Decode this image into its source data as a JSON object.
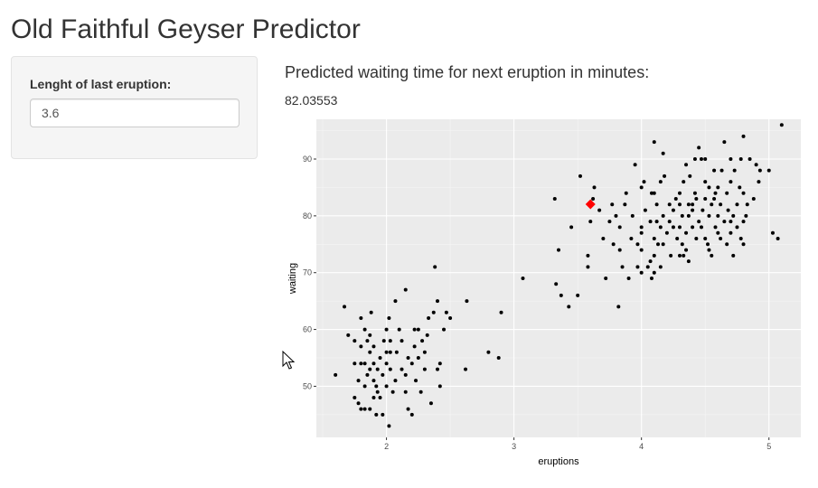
{
  "page": {
    "title": "Old Faithful Geyser Predictor"
  },
  "sidebar": {
    "input_label": "Lenght of last eruption:",
    "input_value": "3.6"
  },
  "main": {
    "prediction_heading": "Predicted waiting time for next eruption in minutes:",
    "prediction_value": "82.03553"
  },
  "chart_data": {
    "type": "scatter",
    "xlabel": "eruptions",
    "ylabel": "waiting",
    "xlim": [
      1.45,
      5.25
    ],
    "ylim": [
      41,
      97
    ],
    "xticks": [
      2,
      3,
      4,
      5
    ],
    "yticks": [
      50,
      60,
      70,
      80,
      90
    ],
    "grid": true,
    "background": "#ebebeb",
    "point_color": "#000000",
    "series": [
      {
        "points": [
          [
            1.6,
            52
          ],
          [
            1.67,
            64
          ],
          [
            1.7,
            59
          ],
          [
            1.75,
            48
          ],
          [
            1.75,
            54
          ],
          [
            1.75,
            58
          ],
          [
            1.78,
            47
          ],
          [
            1.78,
            51
          ],
          [
            1.8,
            46
          ],
          [
            1.8,
            54
          ],
          [
            1.8,
            57
          ],
          [
            1.8,
            62
          ],
          [
            1.83,
            46
          ],
          [
            1.83,
            50
          ],
          [
            1.83,
            54
          ],
          [
            1.83,
            60
          ],
          [
            1.85,
            52
          ],
          [
            1.85,
            58
          ],
          [
            1.87,
            46
          ],
          [
            1.87,
            53
          ],
          [
            1.87,
            56
          ],
          [
            1.87,
            59
          ],
          [
            1.88,
            63
          ],
          [
            1.9,
            48
          ],
          [
            1.9,
            51
          ],
          [
            1.9,
            54
          ],
          [
            1.9,
            57
          ],
          [
            1.92,
            45
          ],
          [
            1.92,
            50
          ],
          [
            1.93,
            49
          ],
          [
            1.93,
            53
          ],
          [
            1.95,
            48
          ],
          [
            1.95,
            55
          ],
          [
            1.97,
            45
          ],
          [
            1.97,
            52
          ],
          [
            1.98,
            58
          ],
          [
            2.0,
            54
          ],
          [
            2.0,
            50
          ],
          [
            2.0,
            56
          ],
          [
            2.0,
            60
          ],
          [
            2.02,
            43
          ],
          [
            2.02,
            62
          ],
          [
            2.03,
            53
          ],
          [
            2.03,
            56
          ],
          [
            2.03,
            58
          ],
          [
            2.05,
            49
          ],
          [
            2.07,
            51
          ],
          [
            2.07,
            65
          ],
          [
            2.08,
            56
          ],
          [
            2.1,
            60
          ],
          [
            2.12,
            53
          ],
          [
            2.12,
            58
          ],
          [
            2.15,
            49
          ],
          [
            2.15,
            52
          ],
          [
            2.15,
            67
          ],
          [
            2.17,
            46
          ],
          [
            2.17,
            55
          ],
          [
            2.2,
            45
          ],
          [
            2.2,
            54
          ],
          [
            2.22,
            57
          ],
          [
            2.22,
            60
          ],
          [
            2.23,
            51
          ],
          [
            2.25,
            55
          ],
          [
            2.25,
            60
          ],
          [
            2.27,
            49
          ],
          [
            2.28,
            58
          ],
          [
            2.3,
            53
          ],
          [
            2.3,
            56
          ],
          [
            2.32,
            59
          ],
          [
            2.33,
            62
          ],
          [
            2.35,
            47
          ],
          [
            2.37,
            63
          ],
          [
            2.38,
            71
          ],
          [
            2.4,
            53
          ],
          [
            2.4,
            65
          ],
          [
            2.42,
            50
          ],
          [
            2.42,
            54
          ],
          [
            2.45,
            60
          ],
          [
            2.47,
            63
          ],
          [
            2.5,
            62
          ],
          [
            2.62,
            53
          ],
          [
            2.63,
            65
          ],
          [
            2.8,
            56
          ],
          [
            2.88,
            55
          ],
          [
            2.9,
            63
          ],
          [
            3.07,
            69
          ],
          [
            3.32,
            83
          ],
          [
            3.33,
            68
          ],
          [
            3.35,
            74
          ],
          [
            3.37,
            66
          ],
          [
            3.43,
            64
          ],
          [
            3.45,
            78
          ],
          [
            3.5,
            66
          ],
          [
            3.52,
            87
          ],
          [
            3.58,
            71
          ],
          [
            3.58,
            73
          ],
          [
            3.6,
            79
          ],
          [
            3.62,
            83
          ],
          [
            3.63,
            85
          ],
          [
            3.67,
            81
          ],
          [
            3.7,
            76
          ],
          [
            3.72,
            69
          ],
          [
            3.75,
            79
          ],
          [
            3.77,
            82
          ],
          [
            3.78,
            75
          ],
          [
            3.8,
            80
          ],
          [
            3.82,
            64
          ],
          [
            3.83,
            74
          ],
          [
            3.83,
            78
          ],
          [
            3.85,
            71
          ],
          [
            3.87,
            82
          ],
          [
            3.88,
            84
          ],
          [
            3.9,
            69
          ],
          [
            3.92,
            76
          ],
          [
            3.93,
            80
          ],
          [
            3.95,
            89
          ],
          [
            3.97,
            71
          ],
          [
            3.97,
            75
          ],
          [
            4.0,
            70
          ],
          [
            4.0,
            74
          ],
          [
            4.0,
            77
          ],
          [
            4.0,
            78
          ],
          [
            4.0,
            85
          ],
          [
            4.02,
            86
          ],
          [
            4.03,
            81
          ],
          [
            4.05,
            71
          ],
          [
            4.07,
            72
          ],
          [
            4.07,
            79
          ],
          [
            4.08,
            69
          ],
          [
            4.08,
            84
          ],
          [
            4.1,
            70
          ],
          [
            4.1,
            73
          ],
          [
            4.1,
            76
          ],
          [
            4.1,
            84
          ],
          [
            4.1,
            93
          ],
          [
            4.12,
            79
          ],
          [
            4.12,
            82
          ],
          [
            4.13,
            75
          ],
          [
            4.15,
            71
          ],
          [
            4.15,
            78
          ],
          [
            4.15,
            86
          ],
          [
            4.17,
            75
          ],
          [
            4.17,
            80
          ],
          [
            4.17,
            91
          ],
          [
            4.18,
            87
          ],
          [
            4.2,
            77
          ],
          [
            4.22,
            79
          ],
          [
            4.22,
            82
          ],
          [
            4.23,
            73
          ],
          [
            4.25,
            78
          ],
          [
            4.25,
            81
          ],
          [
            4.27,
            83
          ],
          [
            4.28,
            76
          ],
          [
            4.3,
            73
          ],
          [
            4.3,
            78
          ],
          [
            4.3,
            82
          ],
          [
            4.3,
            84
          ],
          [
            4.32,
            75
          ],
          [
            4.32,
            80
          ],
          [
            4.33,
            73
          ],
          [
            4.33,
            86
          ],
          [
            4.35,
            74
          ],
          [
            4.35,
            77
          ],
          [
            4.35,
            89
          ],
          [
            4.37,
            72
          ],
          [
            4.37,
            80
          ],
          [
            4.37,
            82
          ],
          [
            4.38,
            87
          ],
          [
            4.4,
            78
          ],
          [
            4.4,
            81
          ],
          [
            4.4,
            82
          ],
          [
            4.42,
            84
          ],
          [
            4.42,
            90
          ],
          [
            4.43,
            76
          ],
          [
            4.43,
            83
          ],
          [
            4.45,
            79
          ],
          [
            4.45,
            92
          ],
          [
            4.47,
            78
          ],
          [
            4.47,
            90
          ],
          [
            4.48,
            81
          ],
          [
            4.5,
            76
          ],
          [
            4.5,
            83
          ],
          [
            4.5,
            86
          ],
          [
            4.5,
            90
          ],
          [
            4.52,
            75
          ],
          [
            4.53,
            74
          ],
          [
            4.53,
            80
          ],
          [
            4.53,
            85
          ],
          [
            4.55,
            73
          ],
          [
            4.55,
            82
          ],
          [
            4.57,
            83
          ],
          [
            4.57,
            88
          ],
          [
            4.58,
            78
          ],
          [
            4.58,
            84
          ],
          [
            4.6,
            77
          ],
          [
            4.6,
            80
          ],
          [
            4.6,
            85
          ],
          [
            4.62,
            76
          ],
          [
            4.62,
            82
          ],
          [
            4.63,
            88
          ],
          [
            4.65,
            79
          ],
          [
            4.65,
            93
          ],
          [
            4.67,
            75
          ],
          [
            4.67,
            84
          ],
          [
            4.68,
            81
          ],
          [
            4.7,
            77
          ],
          [
            4.7,
            79
          ],
          [
            4.7,
            86
          ],
          [
            4.7,
            90
          ],
          [
            4.72,
            73
          ],
          [
            4.72,
            80
          ],
          [
            4.73,
            88
          ],
          [
            4.75,
            78
          ],
          [
            4.75,
            82
          ],
          [
            4.77,
            85
          ],
          [
            4.78,
            76
          ],
          [
            4.78,
            90
          ],
          [
            4.8,
            75
          ],
          [
            4.8,
            79
          ],
          [
            4.8,
            84
          ],
          [
            4.8,
            94
          ],
          [
            4.82,
            80
          ],
          [
            4.83,
            82
          ],
          [
            4.85,
            90
          ],
          [
            4.88,
            83
          ],
          [
            4.9,
            89
          ],
          [
            4.92,
            86
          ],
          [
            4.93,
            88
          ],
          [
            5.0,
            88
          ],
          [
            5.03,
            77
          ],
          [
            5.07,
            76
          ],
          [
            5.1,
            96
          ]
        ]
      }
    ],
    "highlight": {
      "x": 3.6,
      "y": 82.03553,
      "color": "#ff0000"
    }
  }
}
